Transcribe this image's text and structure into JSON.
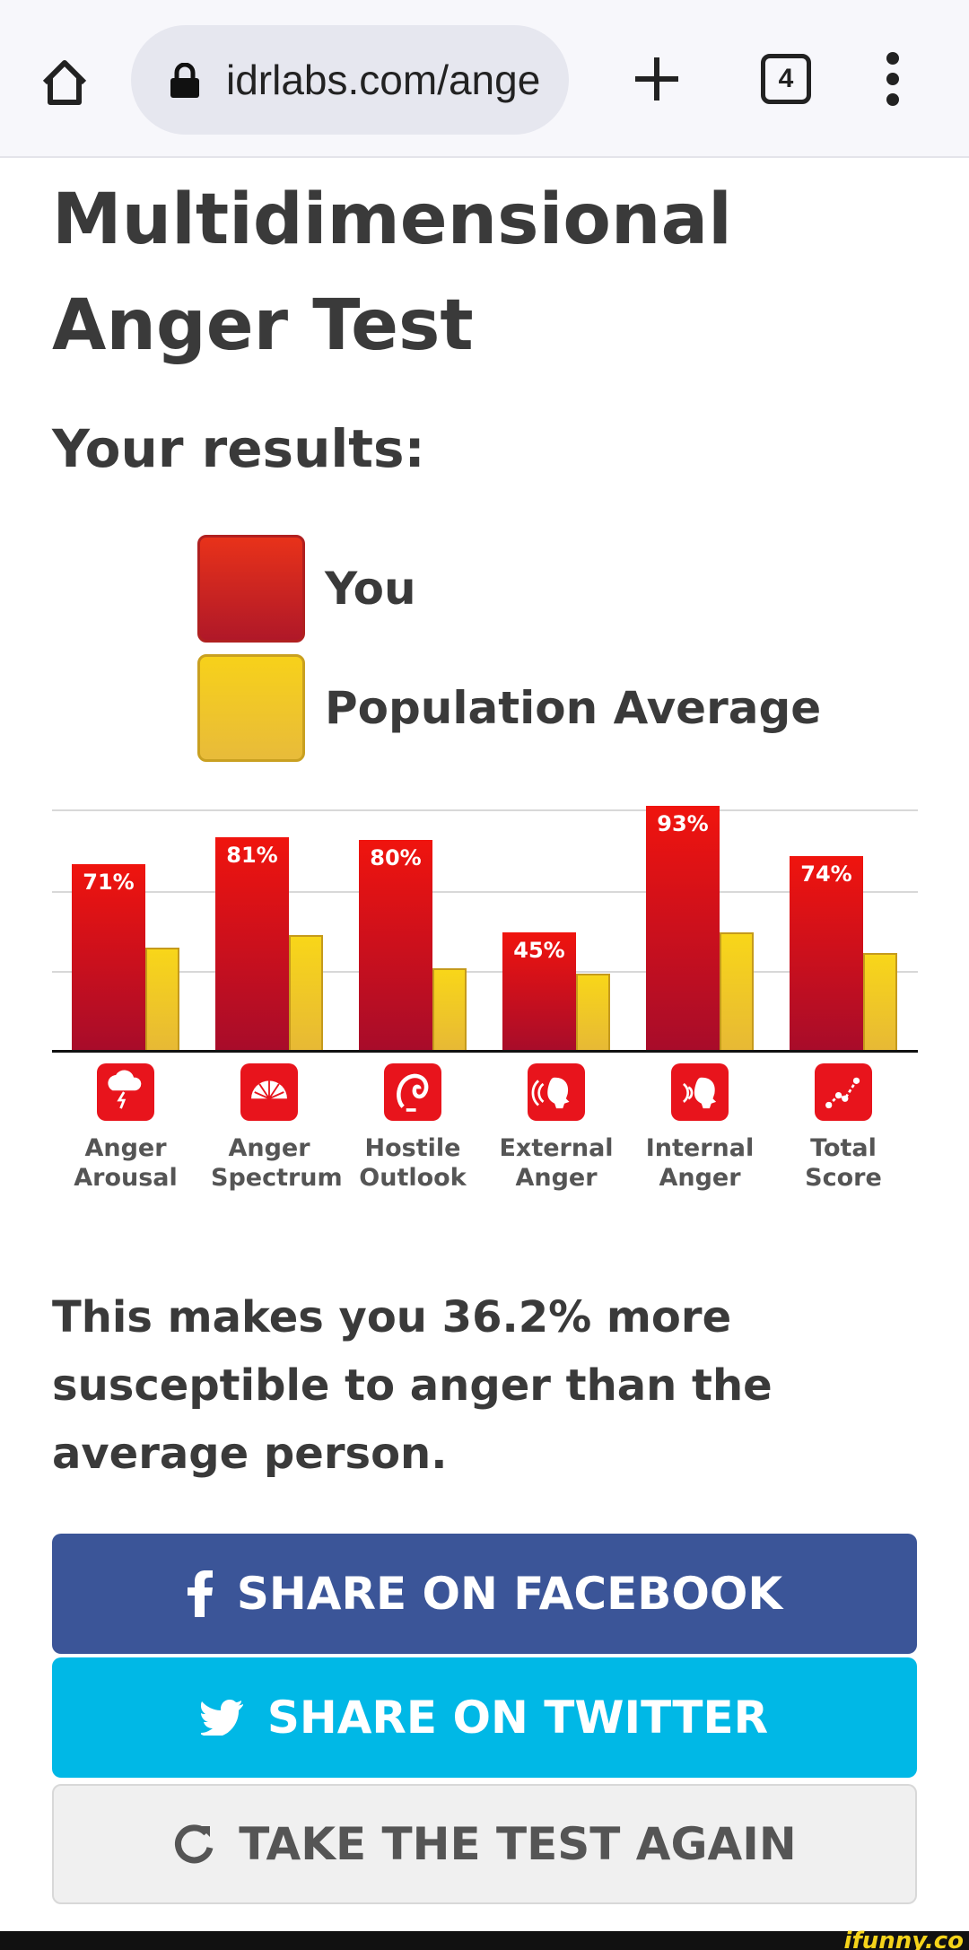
{
  "browser": {
    "url": "idrlabs.com/ange",
    "tab_count": "4"
  },
  "page": {
    "title": "Multidimensional Anger Test",
    "results_heading": "Your results:",
    "legend": {
      "you": "You",
      "average": "Population Average"
    },
    "conclusion": "This makes you 36.2% more susceptible to anger than the average person."
  },
  "chart_data": {
    "type": "bar",
    "categories": [
      "Anger Arousal",
      "Anger Spectrum",
      "Hostile Outlook",
      "External Anger",
      "Internal Anger",
      "Total Score"
    ],
    "category_lines": [
      [
        "Anger",
        "Arousal"
      ],
      [
        "Anger",
        "Spectrum"
      ],
      [
        "Hostile",
        "Outlook"
      ],
      [
        "External",
        "Anger"
      ],
      [
        "Internal",
        "Anger"
      ],
      [
        "Total",
        "Score"
      ]
    ],
    "series": [
      {
        "name": "You",
        "values": [
          71,
          81,
          80,
          45,
          93,
          74
        ],
        "labels": [
          "71%",
          "81%",
          "80%",
          "45%",
          "93%",
          "74%"
        ],
        "color": "#e8141c"
      },
      {
        "name": "Population Average",
        "values": [
          39,
          44,
          31,
          29,
          45,
          37
        ],
        "color": "#f2c92a"
      }
    ],
    "ylim": [
      0,
      100
    ],
    "grid": true
  },
  "buttons": {
    "facebook": "SHARE ON FACEBOOK",
    "twitter": "SHARE ON TWITTER",
    "again": "TAKE THE TEST AGAIN"
  },
  "watermark": "ifunny.co"
}
